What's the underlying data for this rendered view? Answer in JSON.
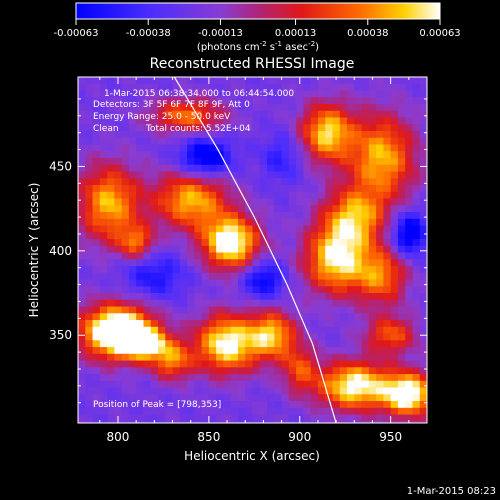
{
  "chart_data": {
    "type": "heatmap",
    "title": "Reconstructed RHESSI Image",
    "xlabel": "Heliocentric X (arcsec)",
    "ylabel": "Heliocentric Y (arcsec)",
    "xlim": [
      778,
      970
    ],
    "ylim": [
      298,
      503
    ],
    "x_ticks": [
      800,
      850,
      900,
      950
    ],
    "y_ticks": [
      350,
      400,
      450
    ],
    "x_tick_labels": [
      "800",
      "850",
      "900",
      "950"
    ],
    "y_tick_labels": [
      "350",
      "400",
      "450"
    ],
    "colorbar": {
      "range": [
        -0.00063,
        0.00063
      ],
      "ticks": [
        -0.00063,
        -0.00038,
        -0.00013,
        0.00013,
        0.00038,
        0.00063
      ],
      "tick_labels": [
        "-0.00063",
        "-0.00038",
        "-0.00013",
        "0.00013",
        "0.00038",
        "0.00063"
      ],
      "units_main": "(photons cm",
      "units_sup1": "-2",
      "units_mid": " s",
      "units_sup2": "-1",
      "units_end": " asec",
      "units_sup3": "-2",
      "units_close": ")"
    },
    "annotations": {
      "time_range": "1-Mar-2015 06:38:34.000 to 06:44:54.000",
      "detectors": "Detectors: 3F 5F 6F 7F 8F 9F, Att 0",
      "energy": "Energy Range: 25.0 - 50.0 keV",
      "clean": "Clean",
      "counts": "Total counts: 5.52E+04",
      "peak": "Position of Peak = [798,353]"
    },
    "limb_curve": [
      [
        831,
        503
      ],
      [
        855,
        460
      ],
      [
        875,
        420
      ],
      [
        893,
        380
      ],
      [
        907,
        345
      ],
      [
        920,
        298
      ]
    ],
    "peak_position": [
      798,
      353
    ],
    "sources": [
      {
        "x": 800,
        "y": 352,
        "sx": 14,
        "sy": 11,
        "a": 0.95
      },
      {
        "x": 815,
        "y": 345,
        "sx": 8,
        "sy": 6,
        "a": 0.55
      },
      {
        "x": 795,
        "y": 428,
        "sx": 12,
        "sy": 16,
        "a": 0.55
      },
      {
        "x": 810,
        "y": 405,
        "sx": 7,
        "sy": 7,
        "a": 0.4
      },
      {
        "x": 840,
        "y": 430,
        "sx": 14,
        "sy": 12,
        "a": 0.55
      },
      {
        "x": 862,
        "y": 405,
        "sx": 11,
        "sy": 11,
        "a": 0.75
      },
      {
        "x": 838,
        "y": 480,
        "sx": 14,
        "sy": 7,
        "a": 0.45
      },
      {
        "x": 860,
        "y": 345,
        "sx": 12,
        "sy": 12,
        "a": 0.7
      },
      {
        "x": 885,
        "y": 350,
        "sx": 9,
        "sy": 10,
        "a": 0.55
      },
      {
        "x": 830,
        "y": 335,
        "sx": 8,
        "sy": 8,
        "a": 0.45
      },
      {
        "x": 915,
        "y": 470,
        "sx": 10,
        "sy": 12,
        "a": 0.6
      },
      {
        "x": 945,
        "y": 455,
        "sx": 13,
        "sy": 18,
        "a": 0.55
      },
      {
        "x": 930,
        "y": 420,
        "sx": 12,
        "sy": 12,
        "a": 0.5
      },
      {
        "x": 920,
        "y": 395,
        "sx": 12,
        "sy": 14,
        "a": 0.65
      },
      {
        "x": 945,
        "y": 385,
        "sx": 10,
        "sy": 12,
        "a": 0.45
      },
      {
        "x": 930,
        "y": 320,
        "sx": 14,
        "sy": 10,
        "a": 0.7
      },
      {
        "x": 960,
        "y": 315,
        "sx": 10,
        "sy": 9,
        "a": 0.75
      },
      {
        "x": 950,
        "y": 350,
        "sx": 10,
        "sy": 8,
        "a": 0.4
      },
      {
        "x": 900,
        "y": 330,
        "sx": 7,
        "sy": 10,
        "a": 0.35
      }
    ],
    "cold_spots": [
      {
        "x": 848,
        "y": 455,
        "sx": 10,
        "sy": 8,
        "a": 0.45
      },
      {
        "x": 820,
        "y": 385,
        "sx": 12,
        "sy": 10,
        "a": 0.25
      },
      {
        "x": 880,
        "y": 383,
        "sx": 8,
        "sy": 8,
        "a": 0.35
      },
      {
        "x": 960,
        "y": 410,
        "sx": 7,
        "sy": 9,
        "a": 0.45
      },
      {
        "x": 890,
        "y": 455,
        "sx": 8,
        "sy": 10,
        "a": 0.2
      }
    ]
  },
  "footer_timestamp": "1-Mar-2015 08:23"
}
